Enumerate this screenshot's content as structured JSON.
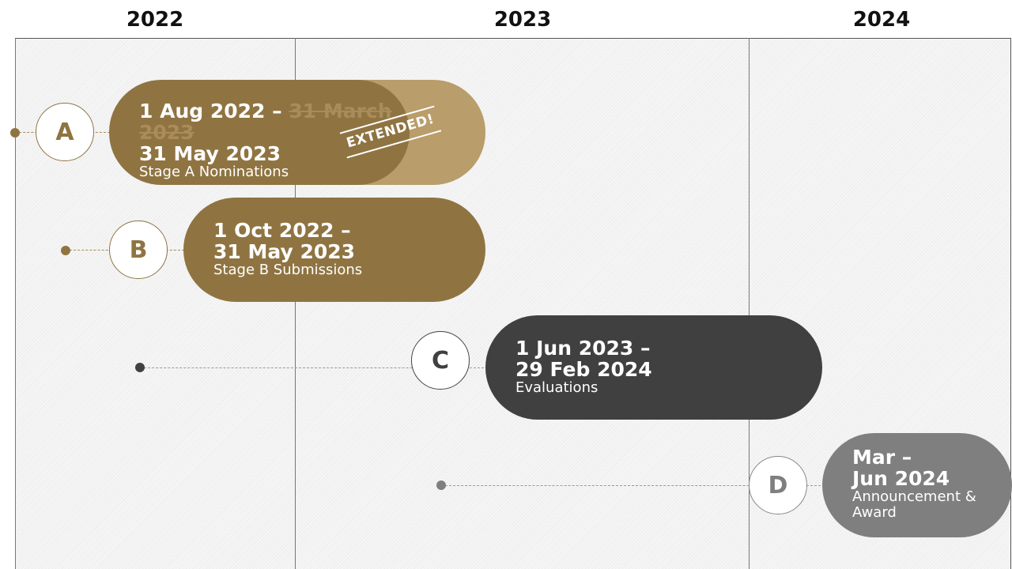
{
  "years": [
    "2022",
    "2023",
    "2024"
  ],
  "stages": [
    {
      "letter": "A",
      "date": "1 Aug 2022 –",
      "struck": "31 March 2023",
      "new_date": "31 May 2023",
      "description": "Stage A Nominations",
      "badge": "EXTENDED!",
      "color": "#8f7442"
    },
    {
      "letter": "B",
      "date": "1 Oct 2022 –\n31 May 2023",
      "description": "Stage B Submissions",
      "color": "#8f7442"
    },
    {
      "letter": "C",
      "date": "1 Jun 2023 –\n29 Feb 2024",
      "description": "Evaluations",
      "color": "#404040"
    },
    {
      "letter": "D",
      "date": "Mar –\nJun 2024",
      "description": "Announcement &\nAward",
      "color": "#7f7f7f"
    }
  ],
  "colors": {
    "gold": "#8f7442",
    "gold_light": "#b99d6a",
    "dark": "#404040",
    "grey": "#7f7f7f"
  }
}
